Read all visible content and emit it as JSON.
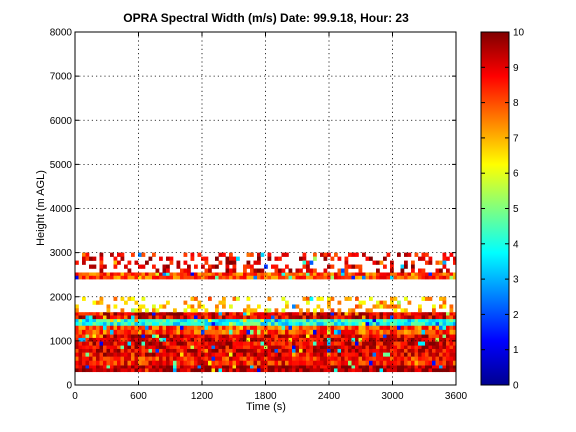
{
  "chart_data": {
    "type": "heatmap",
    "title": "OPRA Spectral Width (m/s)  Date: 99.9.18, Hour: 23",
    "xlabel": "Time (s)",
    "ylabel": "Height (m AGL)",
    "xlim": [
      0,
      3600
    ],
    "ylim": [
      0,
      8000
    ],
    "x_ticks": [
      0,
      600,
      1200,
      1800,
      2400,
      3000,
      3600
    ],
    "x_tick_labels": [
      "0",
      "600",
      "1200",
      "1800",
      "2400",
      "3000",
      "3600"
    ],
    "y_ticks": [
      0,
      1000,
      2000,
      3000,
      4000,
      5000,
      6000,
      7000,
      8000
    ],
    "y_tick_labels": [
      "0",
      "1000",
      "2000",
      "3000",
      "4000",
      "5000",
      "6000",
      "7000",
      "8000"
    ],
    "grid": true,
    "colorbar": {
      "range": [
        0,
        10
      ],
      "ticks": [
        0,
        1,
        2,
        3,
        4,
        5,
        6,
        7,
        8,
        9,
        10
      ],
      "tick_labels": [
        "0",
        "1",
        "2",
        "3",
        "4",
        "5",
        "6",
        "7",
        "8",
        "9",
        "10"
      ],
      "colormap": "jet"
    },
    "bands": [
      {
        "height_min": 300,
        "height_max": 450,
        "typical_value": 9.5,
        "coverage": "continuous"
      },
      {
        "height_min": 450,
        "height_max": 650,
        "typical_value": 8.5,
        "coverage": "continuous"
      },
      {
        "height_min": 650,
        "height_max": 900,
        "typical_value": 9.0,
        "coverage": "continuous"
      },
      {
        "height_min": 900,
        "height_max": 1150,
        "typical_value": 9.0,
        "coverage": "continuous"
      },
      {
        "height_min": 1150,
        "height_max": 1350,
        "typical_value": 8.0,
        "coverage": "continuous"
      },
      {
        "height_min": 1350,
        "height_max": 1500,
        "typical_value": 4.0,
        "coverage": "continuous"
      },
      {
        "height_min": 1500,
        "height_max": 1650,
        "typical_value": 9.0,
        "coverage": "continuous"
      },
      {
        "height_min": 1650,
        "height_max": 2000,
        "typical_value": 7.0,
        "coverage": "sparse"
      },
      {
        "height_min": 2400,
        "height_max": 2550,
        "typical_value": 8.0,
        "coverage": "continuous"
      },
      {
        "height_min": 2550,
        "height_max": 3000,
        "typical_value": 9.0,
        "coverage": "sparse"
      }
    ]
  }
}
